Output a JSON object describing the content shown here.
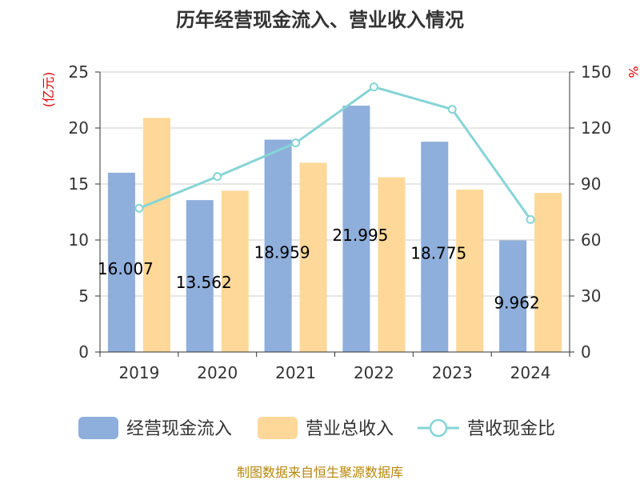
{
  "chart_data": {
    "type": "bar",
    "title": "历年经营现金流入、营业收入情况",
    "categories": [
      "2019",
      "2020",
      "2021",
      "2022",
      "2023",
      "2024"
    ],
    "series": [
      {
        "name": "经营现金流入",
        "kind": "bar",
        "axis": "left",
        "color": "#8eaedb",
        "values": [
          16.007,
          13.562,
          18.959,
          21.995,
          18.775,
          9.962
        ],
        "labels": [
          "16.007",
          "13.562",
          "18.959",
          "21.995",
          "18.775",
          "9.962"
        ]
      },
      {
        "name": "营业总收入",
        "kind": "bar",
        "axis": "left",
        "color": "#fdd898",
        "values": [
          20.9,
          14.4,
          16.9,
          15.6,
          14.5,
          14.2
        ]
      },
      {
        "name": "营收现金比",
        "kind": "line",
        "axis": "right",
        "color": "#86d4d6",
        "values": [
          77,
          94,
          112,
          142,
          130,
          71
        ]
      }
    ],
    "left_axis": {
      "unit": "(亿元)",
      "min": 0,
      "max": 25,
      "ticks": [
        "0",
        "5",
        "10",
        "15",
        "20",
        "25"
      ]
    },
    "right_axis": {
      "unit": "%",
      "min": 0,
      "max": 150,
      "ticks": [
        "0",
        "30",
        "60",
        "90",
        "120",
        "150"
      ]
    },
    "grid": true,
    "legend": "bottom",
    "source": "制图数据来自恒生聚源数据库"
  }
}
